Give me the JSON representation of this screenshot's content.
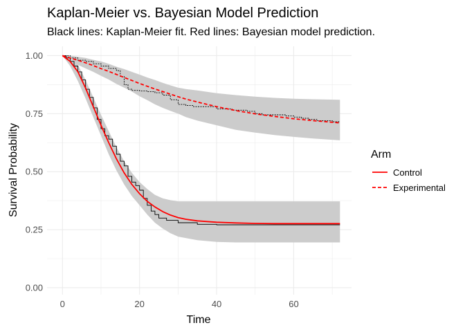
{
  "chart_data": {
    "type": "line",
    "title": "Kaplan-Meier vs. Bayesian Model Prediction",
    "subtitle": "Black lines: Kaplan-Meier fit. Red lines: Bayesian model prediction.",
    "xlabel": "Time",
    "ylabel": "Survival Probability",
    "xlim": [
      -4,
      75
    ],
    "ylim": [
      -0.03,
      1.04
    ],
    "x_ticks": [
      "0",
      "20",
      "40",
      "60"
    ],
    "x_tick_values": [
      0,
      20,
      40,
      60
    ],
    "y_ticks": [
      "0.00",
      "0.25",
      "0.50",
      "0.75",
      "1.00"
    ],
    "y_tick_values": [
      0,
      0.25,
      0.5,
      0.75,
      1.0
    ],
    "grid": true,
    "legend": {
      "title": "Arm",
      "placement": "right",
      "entries": [
        {
          "label": "Control",
          "linetype": "solid"
        },
        {
          "label": "Experimental",
          "linetype": "dashed"
        }
      ]
    },
    "colors": {
      "bayes": "#ff0000",
      "km": "#000000",
      "band": "#cccccc",
      "grid": "#ebebeb"
    },
    "series": [
      {
        "arm": "Control",
        "bayes": {
          "x": [
            0,
            2,
            4,
            6,
            8,
            10,
            12,
            14,
            16,
            18,
            20,
            22,
            24,
            26,
            28,
            30,
            32,
            35,
            40,
            45,
            50,
            55,
            60,
            65,
            72
          ],
          "y": [
            1.0,
            0.975,
            0.93,
            0.86,
            0.78,
            0.7,
            0.625,
            0.555,
            0.495,
            0.445,
            0.405,
            0.372,
            0.348,
            0.328,
            0.313,
            0.302,
            0.295,
            0.288,
            0.282,
            0.279,
            0.277,
            0.276,
            0.276,
            0.276,
            0.276
          ]
        },
        "band_upper": {
          "x": [
            0,
            2,
            4,
            6,
            8,
            10,
            12,
            14,
            16,
            18,
            20,
            22,
            24,
            26,
            28,
            30,
            35,
            40,
            45,
            50,
            55,
            60,
            65,
            72
          ],
          "y": [
            1.0,
            0.995,
            0.96,
            0.895,
            0.82,
            0.745,
            0.675,
            0.605,
            0.545,
            0.495,
            0.455,
            0.425,
            0.4,
            0.385,
            0.377,
            0.372,
            0.372,
            0.372,
            0.372,
            0.372,
            0.372,
            0.372,
            0.372,
            0.372
          ]
        },
        "band_lower": {
          "x": [
            0,
            2,
            4,
            6,
            8,
            10,
            12,
            14,
            16,
            18,
            20,
            22,
            24,
            26,
            28,
            30,
            35,
            40,
            45,
            50,
            55,
            60,
            65,
            72
          ],
          "y": [
            1.0,
            0.955,
            0.89,
            0.815,
            0.735,
            0.655,
            0.575,
            0.505,
            0.445,
            0.395,
            0.355,
            0.315,
            0.28,
            0.255,
            0.235,
            0.22,
            0.205,
            0.197,
            0.195,
            0.195,
            0.195,
            0.195,
            0.195,
            0.195
          ]
        },
        "km": {
          "x": [
            0,
            1,
            2,
            3,
            4,
            5,
            6,
            7,
            8,
            9,
            10,
            11,
            12,
            13,
            14,
            15,
            16,
            17,
            18,
            19,
            20,
            21,
            22,
            23,
            24,
            25,
            27,
            30,
            35,
            40,
            50,
            60,
            72
          ],
          "y": [
            1.0,
            0.99,
            0.975,
            0.955,
            0.93,
            0.895,
            0.855,
            0.82,
            0.775,
            0.725,
            0.685,
            0.655,
            0.64,
            0.61,
            0.575,
            0.545,
            0.525,
            0.48,
            0.455,
            0.44,
            0.42,
            0.385,
            0.355,
            0.33,
            0.315,
            0.3,
            0.29,
            0.28,
            0.273,
            0.271,
            0.271,
            0.271,
            0.271
          ]
        }
      },
      {
        "arm": "Experimental",
        "bayes": {
          "x": [
            0,
            2,
            4,
            6,
            8,
            10,
            12,
            14,
            16,
            18,
            20,
            22,
            24,
            26,
            28,
            30,
            32,
            35,
            40,
            45,
            50,
            55,
            60,
            65,
            72
          ],
          "y": [
            1.0,
            0.99,
            0.98,
            0.969,
            0.957,
            0.944,
            0.932,
            0.919,
            0.906,
            0.893,
            0.88,
            0.868,
            0.856,
            0.845,
            0.834,
            0.823,
            0.813,
            0.8,
            0.78,
            0.763,
            0.749,
            0.738,
            0.728,
            0.72,
            0.71
          ]
        },
        "band_upper": {
          "x": [
            0,
            2,
            4,
            6,
            8,
            10,
            12,
            14,
            16,
            18,
            20,
            22,
            24,
            26,
            28,
            30,
            32,
            35,
            40,
            45,
            50,
            55,
            60,
            65,
            72
          ],
          "y": [
            1.0,
            1.0,
            0.995,
            0.99,
            0.982,
            0.975,
            0.965,
            0.952,
            0.942,
            0.93,
            0.918,
            0.906,
            0.895,
            0.883,
            0.872,
            0.862,
            0.856,
            0.85,
            0.838,
            0.83,
            0.823,
            0.818,
            0.814,
            0.812,
            0.81
          ]
        },
        "band_lower": {
          "x": [
            0,
            2,
            4,
            6,
            8,
            10,
            12,
            14,
            16,
            18,
            20,
            22,
            24,
            26,
            28,
            30,
            32,
            35,
            40,
            45,
            50,
            55,
            60,
            65,
            72
          ],
          "y": [
            1.0,
            0.975,
            0.96,
            0.945,
            0.93,
            0.913,
            0.897,
            0.878,
            0.862,
            0.845,
            0.825,
            0.808,
            0.79,
            0.775,
            0.762,
            0.75,
            0.735,
            0.72,
            0.7,
            0.68,
            0.668,
            0.658,
            0.65,
            0.643,
            0.635
          ]
        },
        "km": {
          "x": [
            0,
            2,
            4,
            6,
            8,
            10,
            12,
            14,
            15,
            16,
            17,
            18,
            20,
            22,
            24,
            26,
            28,
            30,
            32,
            34,
            36,
            40,
            44,
            48,
            50,
            52,
            54,
            56,
            58,
            60,
            62,
            64,
            66,
            68,
            70,
            72
          ],
          "y": [
            1.0,
            0.99,
            0.98,
            0.975,
            0.965,
            0.955,
            0.945,
            0.935,
            0.91,
            0.875,
            0.855,
            0.85,
            0.848,
            0.845,
            0.84,
            0.83,
            0.81,
            0.79,
            0.785,
            0.78,
            0.78,
            0.77,
            0.765,
            0.76,
            0.75,
            0.745,
            0.745,
            0.745,
            0.74,
            0.735,
            0.73,
            0.725,
            0.72,
            0.72,
            0.715,
            0.715
          ]
        }
      }
    ]
  }
}
